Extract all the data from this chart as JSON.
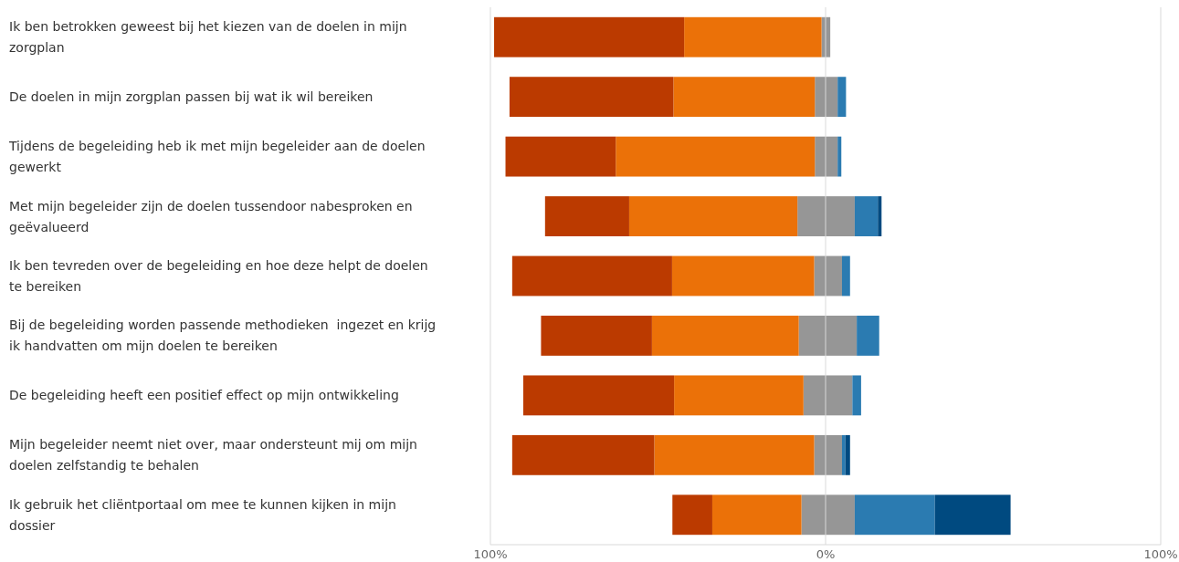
{
  "chart_data": {
    "type": "bar",
    "orientation": "horizontal",
    "stacked": true,
    "categories": [
      "Ik ben betrokken geweest bij het kiezen van de doelen in mijn zorgplan",
      "De doelen in mijn zorgplan passen bij wat ik wil bereiken",
      "Tijdens de begeleiding heb ik met mijn begeleider aan de doelen gewerkt",
      "Met mijn begeleider zijn de doelen tussendoor nabesproken en geëvalueerd",
      "Ik ben tevreden over de begeleiding en hoe deze helpt de doelen te bereiken",
      "Bij de begeleiding worden passende methodieken  ingezet en krijg ik handvatten om mijn doelen te bereiken",
      "De begeleiding heeft een positief effect op mijn ontwikkeling",
      "Mijn begeleider neemt niet over, maar ondersteunt mij om mijn doelen zelfstandig te behalen",
      "Ik gebruik het cliëntportaal om mee te kunnen kijken in mijn dossier"
    ],
    "series": [
      {
        "color": "#969696",
        "values": [
          -1.2,
          -3.2,
          -3.2,
          -8.4,
          -3.4,
          -8,
          -6.6,
          -3.4,
          -7.2
        ]
      },
      {
        "color": "#969696",
        "values": [
          1.4,
          3.6,
          3.6,
          8.7,
          4.9,
          9.3,
          8,
          4.9,
          8.7
        ]
      },
      {
        "color": "#eb7108",
        "values": [
          -41,
          -42.2,
          -59.4,
          -50.2,
          -42.4,
          -43.8,
          -38.6,
          -47.7,
          -26.6
        ]
      },
      {
        "color": "#2b7bb1",
        "values": [
          null,
          2.5,
          1.1,
          6.9,
          2.4,
          6.7,
          2.6,
          1,
          23.9
        ]
      },
      {
        "color": "#bb3a00",
        "values": [
          -56.7,
          -48.9,
          -32.9,
          -25.1,
          -47.7,
          -33.1,
          -45,
          -42.4,
          -11.9
        ]
      },
      {
        "color": "#004a80",
        "values": [
          null,
          null,
          null,
          1.1,
          null,
          null,
          null,
          1.4,
          22.6
        ]
      }
    ],
    "xlim": [
      -100,
      100
    ],
    "xticks": [
      {
        "value": -100,
        "label": "100%"
      },
      {
        "value": 0,
        "label": "0%"
      },
      {
        "value": 100,
        "label": "100%"
      }
    ],
    "grid": "x"
  }
}
